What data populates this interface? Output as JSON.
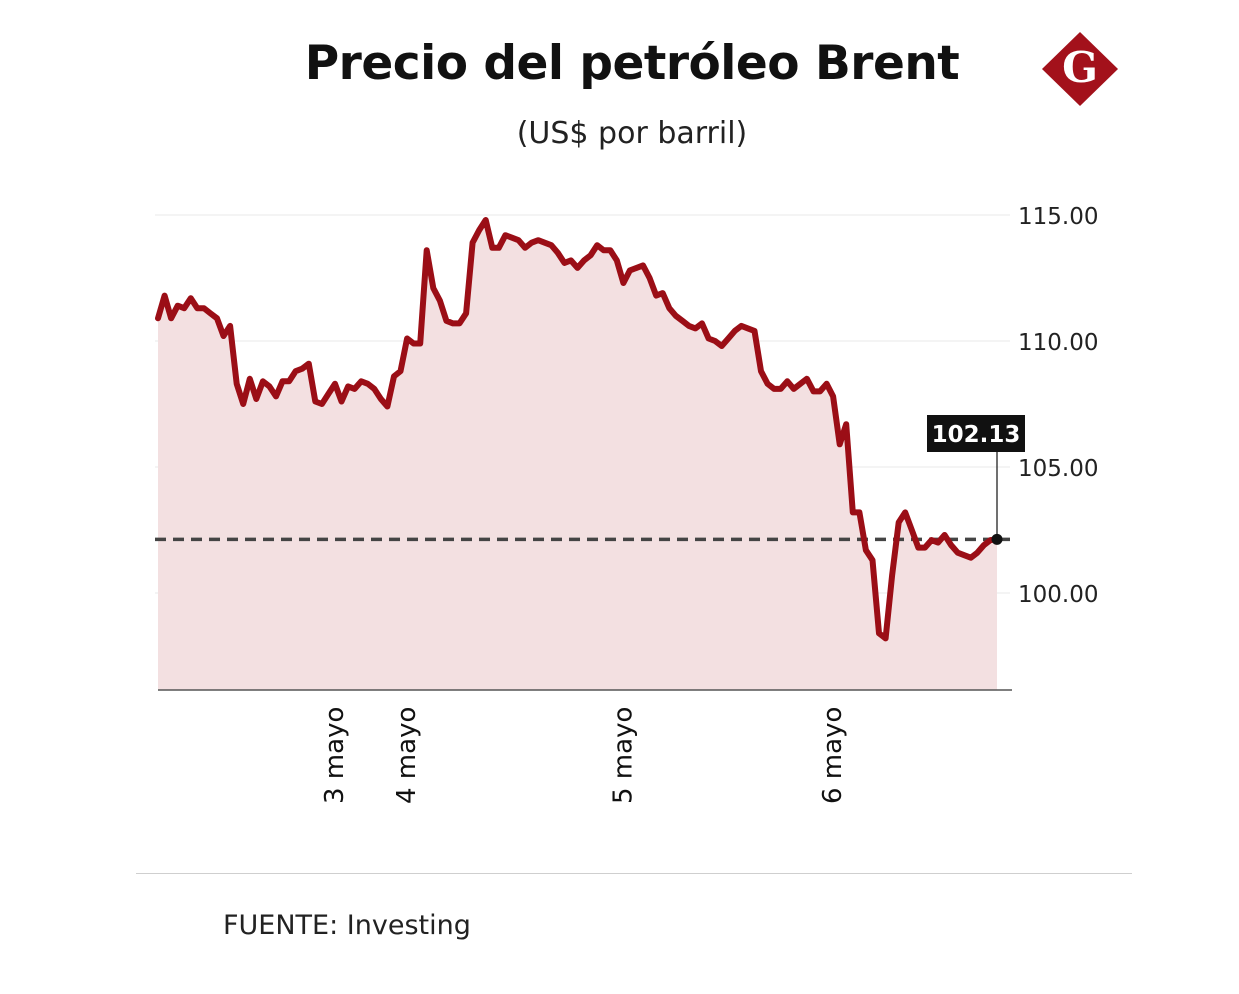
{
  "header": {
    "title": "Precio del petróleo Brent",
    "subtitle": "(US$ por barril)",
    "logo_letter": "G"
  },
  "colors": {
    "line": "#9b0e16",
    "area": "#f3e0e1",
    "dashed": "#444444",
    "grid": "#eaeaea",
    "logo": "#a3111b",
    "label_bg": "#111111"
  },
  "footer": {
    "source_label": "FUENTE:",
    "source_name": "Investing"
  },
  "chart_data": {
    "type": "area",
    "title": "Precio del petróleo Brent",
    "subtitle": "(US$ por barril)",
    "ylabel": "",
    "xlabel": "",
    "ylim": [
      96.1,
      116.0
    ],
    "yticks": [
      100,
      105,
      110,
      115
    ],
    "ytick_labels": [
      "100.00",
      "105.00",
      "110.00",
      "115.00"
    ],
    "grid": true,
    "xtick_labels": [
      {
        "label": "3 mayo",
        "index": 27
      },
      {
        "label": "4 mayo",
        "index": 38
      },
      {
        "label": "5 mayo",
        "index": 71
      },
      {
        "label": "6 mayo",
        "index": 103
      }
    ],
    "reference_line": {
      "value": 102.13,
      "style": "dashed"
    },
    "last_value_label": "102.13",
    "series": [
      {
        "values": [
          110.9,
          111.8,
          110.9,
          111.4,
          111.3,
          111.7,
          111.3,
          111.3,
          111.1,
          110.9,
          110.2,
          110.6,
          108.3,
          107.5,
          108.5,
          107.7,
          108.4,
          108.2,
          107.8,
          108.4,
          108.4,
          108.8,
          108.9,
          109.1,
          107.6,
          107.5,
          107.9,
          108.3,
          107.6,
          108.2,
          108.1,
          108.4,
          108.3,
          108.1,
          107.7,
          107.4,
          108.6,
          108.8,
          110.1,
          109.9,
          109.9,
          113.6,
          112.1,
          111.6,
          110.8,
          110.7,
          110.7,
          111.1,
          113.9,
          114.4,
          114.8,
          113.7,
          113.7,
          114.2,
          114.1,
          114.0,
          113.7,
          113.9,
          114.0,
          113.9,
          113.8,
          113.5,
          113.1,
          113.2,
          112.9,
          113.2,
          113.4,
          113.8,
          113.6,
          113.6,
          113.2,
          112.3,
          112.8,
          112.9,
          113.0,
          112.5,
          111.8,
          111.9,
          111.3,
          111.0,
          110.8,
          110.6,
          110.5,
          110.7,
          110.1,
          110.0,
          109.8,
          110.1,
          110.4,
          110.6,
          110.5,
          110.4,
          108.8,
          108.3,
          108.1,
          108.1,
          108.4,
          108.1,
          108.3,
          108.5,
          108.0,
          108.0,
          108.3,
          107.8,
          105.9,
          106.7,
          103.2,
          103.2,
          101.7,
          101.3,
          98.4,
          98.2,
          100.7,
          102.8,
          103.2,
          102.5,
          101.8,
          101.8,
          102.1,
          102.0,
          102.3,
          101.9,
          101.6,
          101.5,
          101.4,
          101.6,
          101.9,
          102.1,
          102.13
        ]
      }
    ]
  }
}
